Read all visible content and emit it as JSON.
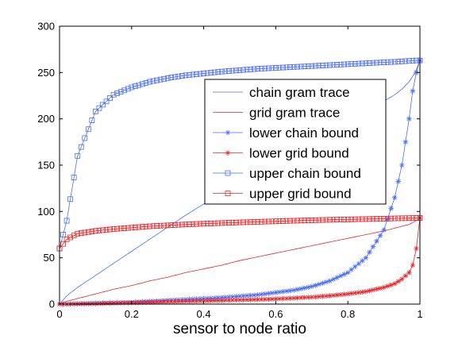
{
  "chart_data": {
    "type": "line",
    "title": "",
    "xlabel": "sensor to node ratio",
    "ylabel": "",
    "xlim": [
      0,
      1
    ],
    "ylim": [
      0,
      300
    ],
    "x_ticks": [
      0,
      0.2,
      0.4,
      0.6,
      0.8,
      1
    ],
    "x_tick_labels": [
      "0",
      "0.2",
      "0.4",
      "0.6",
      "0.8",
      "1"
    ],
    "y_ticks": [
      0,
      50,
      100,
      150,
      200,
      250,
      300
    ],
    "y_tick_labels": [
      "0",
      "50",
      "100",
      "150",
      "200",
      "250",
      "300"
    ],
    "grid": false,
    "legend_position": "center-right",
    "x": [
      0,
      0.02,
      0.05,
      0.1,
      0.15,
      0.2,
      0.25,
      0.3,
      0.35,
      0.4,
      0.45,
      0.5,
      0.55,
      0.6,
      0.65,
      0.7,
      0.75,
      0.8,
      0.85,
      0.9,
      0.93,
      0.95,
      0.97,
      0.98,
      0.99,
      1
    ],
    "series": [
      {
        "name": "chain gram trace",
        "color": "#4a6cf7",
        "marker": "none",
        "values": [
          0,
          9,
          18,
          31,
          44,
          57,
          70,
          83,
          96,
          108,
          120,
          132,
          144,
          155,
          166,
          177,
          188,
          198,
          208,
          219,
          226,
          232,
          240,
          246,
          253,
          263
        ]
      },
      {
        "name": "grid gram trace",
        "color": "#e8262b",
        "marker": "none",
        "values": [
          0,
          3,
          6,
          11,
          16,
          20,
          25,
          29,
          34,
          38,
          42,
          47,
          51,
          55,
          59,
          63,
          67,
          71,
          75,
          79,
          82,
          84,
          86,
          88,
          90,
          93
        ]
      },
      {
        "name": "lower chain bound",
        "color": "#4a6cf7",
        "marker": "star",
        "values": [
          0,
          0,
          0.5,
          1,
          1.5,
          2,
          3,
          4,
          5,
          6,
          7,
          8.5,
          10,
          12.5,
          15,
          19,
          25,
          34,
          50,
          80,
          115,
          150,
          200,
          230,
          250,
          263
        ]
      },
      {
        "name": "lower grid bound",
        "color": "#e8262b",
        "marker": "star",
        "values": [
          0,
          0,
          0.2,
          0.5,
          1,
          1.5,
          2,
          2.5,
          3,
          3.5,
          4,
          4.5,
          5,
          5.5,
          6.5,
          7.5,
          9,
          11,
          13.5,
          18,
          22,
          27,
          34,
          42,
          60,
          93
        ]
      },
      {
        "name": "upper chain bound",
        "color": "#4a6cf7",
        "marker": "square",
        "values": [
          60,
          90,
          160,
          208,
          226,
          234,
          240,
          244,
          247,
          249,
          251,
          252.5,
          254,
          255,
          256,
          257,
          258,
          259,
          260,
          261,
          261.5,
          262,
          262.5,
          262.7,
          263,
          263
        ]
      },
      {
        "name": "upper grid bound",
        "color": "#e8262b",
        "marker": "square",
        "values": [
          60,
          70,
          76,
          79,
          81,
          82.5,
          84,
          85,
          86,
          86.8,
          87.5,
          88.2,
          88.8,
          89.4,
          90,
          90.5,
          91,
          91.4,
          91.8,
          92.2,
          92.5,
          92.7,
          92.8,
          92.9,
          93,
          93
        ]
      }
    ]
  }
}
